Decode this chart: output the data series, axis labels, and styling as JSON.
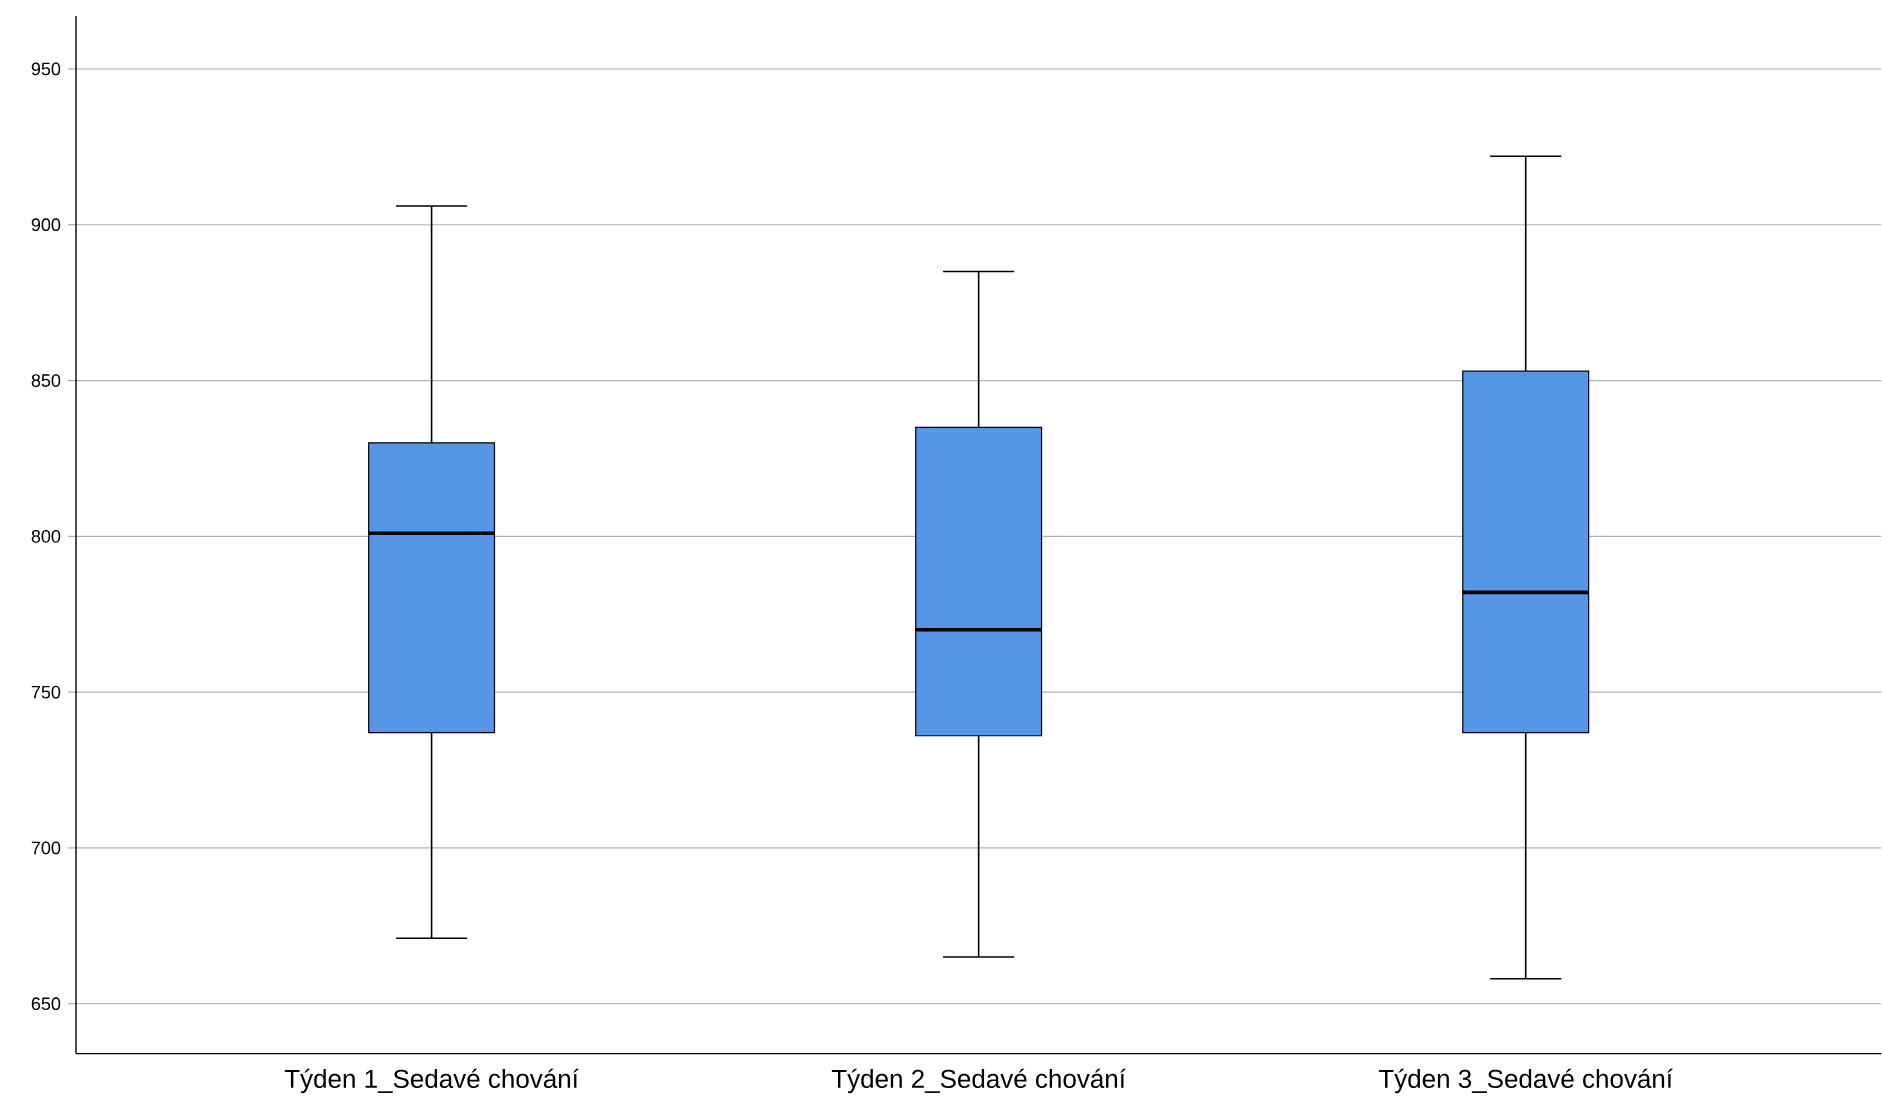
{
  "chart_data": {
    "type": "box",
    "categories": [
      "Týden 1_Sedavé chování",
      "Týden 2_Sedavé chování",
      "Týden 3_Sedavé chování"
    ],
    "boxes": [
      {
        "low": 671,
        "q1": 737,
        "median": 801,
        "q3": 830,
        "high": 906
      },
      {
        "low": 665,
        "q1": 736,
        "median": 770,
        "q3": 835,
        "high": 885
      },
      {
        "low": 658,
        "q1": 737,
        "median": 782,
        "q3": 853,
        "high": 922
      }
    ],
    "color": "#5596e6",
    "ylim": [
      634,
      967
    ],
    "yticks": [
      650,
      700,
      750,
      800,
      850,
      900,
      950
    ],
    "grid": "y"
  }
}
